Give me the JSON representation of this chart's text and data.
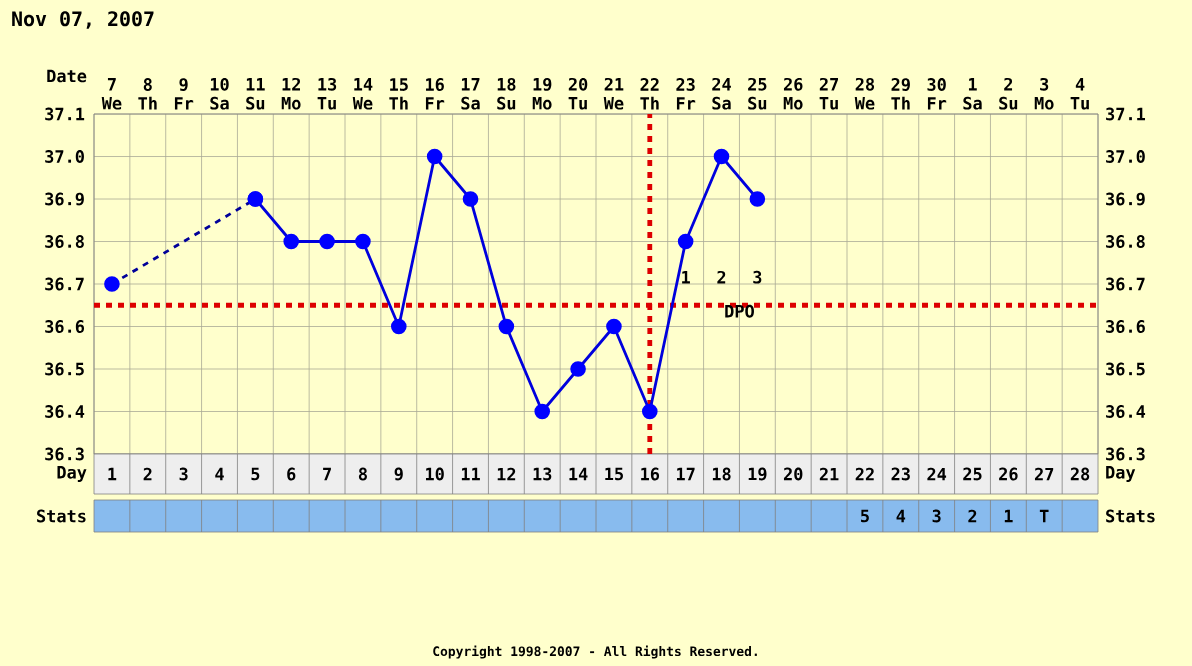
{
  "chart_data": {
    "type": "line",
    "title": "Nov 07, 2007",
    "xlabel": "Date",
    "x2label": "Day",
    "categories": [
      "7 We",
      "8 Th",
      "9 Fr",
      "10 Sa",
      "11 Su",
      "12 Mo",
      "13 Tu",
      "14 We",
      "15 Th",
      "16 Fr",
      "17 Sa",
      "18 Su",
      "19 Mo",
      "20 Tu",
      "21 We",
      "22 Th",
      "23 Fr",
      "24 Sa",
      "25 Su",
      "26 Mo",
      "27 Tu",
      "28 We",
      "29 Th",
      "30 Fr",
      "1 Sa",
      "2 Su",
      "3 Mo",
      "4 Tu"
    ],
    "x2lim": [
      0.5,
      28.5
    ],
    "x2ticks": [
      1,
      2,
      3,
      4,
      5,
      6,
      7,
      8,
      9,
      10,
      11,
      12,
      13,
      14,
      15,
      16,
      17,
      18,
      19,
      20,
      21,
      22,
      23,
      24,
      25,
      26,
      27,
      28
    ],
    "ylim": [
      36.3,
      37.1
    ],
    "yticks": [
      36.3,
      36.4,
      36.5,
      36.6,
      36.7,
      36.8,
      36.9,
      {
        "value": 37.0,
        "label": "37.0"
      },
      37.1
    ],
    "y2lim": [
      36.3,
      37.1
    ],
    "y2ticks": [
      36.3,
      36.4,
      36.5,
      36.6,
      36.7,
      36.8,
      36.9,
      {
        "value": 37.0,
        "label": "37.0"
      },
      37.1
    ],
    "grid": true,
    "marker": "circle",
    "series": [
      {
        "color": "#000099",
        "line_style": "dashed",
        "values": [
          36.7,
          null,
          null,
          null,
          36.9,
          null,
          null,
          null,
          null,
          null,
          null,
          null,
          null,
          null,
          null,
          null,
          null,
          null,
          null,
          null,
          null,
          null,
          null,
          null,
          null,
          null,
          null,
          null
        ]
      },
      {
        "color": "#0000dd",
        "line_style": "solid",
        "values": [
          null,
          null,
          null,
          null,
          36.9,
          36.8,
          36.8,
          36.8,
          36.6,
          37.0,
          36.9,
          36.6,
          36.4,
          36.5,
          36.6,
          36.4,
          36.8,
          37.0,
          36.9,
          null,
          null,
          null,
          null,
          null,
          null,
          null,
          null,
          null
        ]
      }
    ],
    "ref_lines": [
      {
        "axis": "y",
        "value": 36.65,
        "color": "#dd0000",
        "line_style": "dotted"
      },
      {
        "axis": "x",
        "value": "22 Th",
        "color": "#dd0000",
        "line_style": "dotted"
      }
    ],
    "annotations": [
      "Stats",
      "Copyright 1998-2007 - All Rights Reserved.",
      "1",
      "2",
      "3",
      "DPO",
      "5",
      "4",
      "3",
      "2",
      "1",
      "T"
    ]
  }
}
